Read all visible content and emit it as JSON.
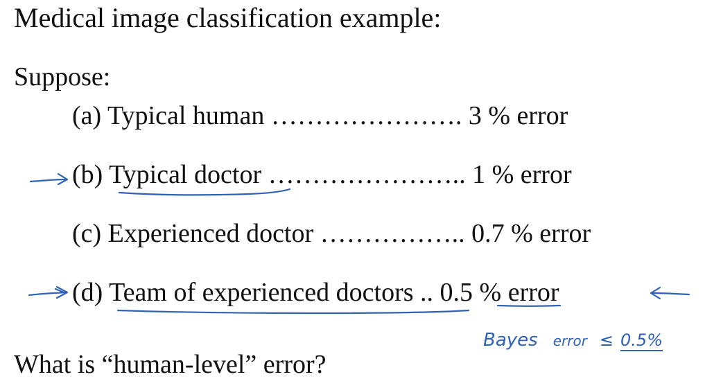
{
  "title": "Medical image classification example:",
  "intro": "Suppose:",
  "rows": [
    {
      "label": "(a) Typical human",
      "leader": " …………………. ",
      "value": "3 % error"
    },
    {
      "label": "(b) Typical doctor",
      "leader": " ………………….. ",
      "value": "1 % error"
    },
    {
      "label": "(c) Experienced doctor",
      "leader": " …………….. ",
      "value": "0.7 % error"
    },
    {
      "label": "(d) Team of experienced doctors",
      "leader": " .. ",
      "value": "0.5 % error"
    }
  ],
  "question": "What is “human-level” error?",
  "annotation": {
    "word1": "Bayes",
    "word2": "error",
    "symbol": "≤",
    "value": "0.5%"
  },
  "ink_color": "#2f62b4"
}
